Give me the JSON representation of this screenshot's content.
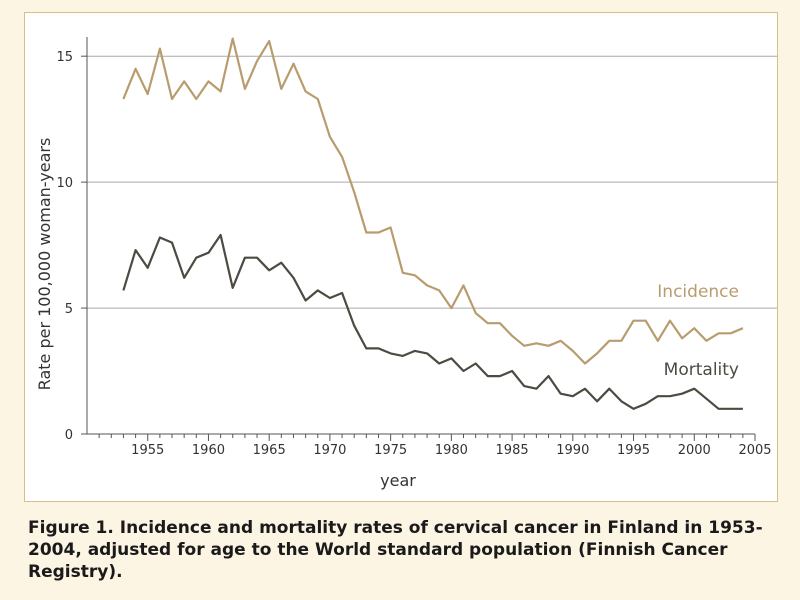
{
  "caption": "Figure 1. Incidence and mortality rates of cervical cancer in Finland in 1953-2004, adjusted for age to the World standard population (Finnish Cancer Registry).",
  "chart_data": {
    "type": "line",
    "title": "",
    "xlabel": "year",
    "ylabel": "Rate per 100,000 woman-years",
    "xlim": [
      1950,
      2005
    ],
    "ylim": [
      0,
      16
    ],
    "x_ticks": [
      "1955",
      "1960",
      "1965",
      "1970",
      "1975",
      "1980",
      "1985",
      "1990",
      "1995",
      "2000",
      "2005"
    ],
    "y_ticks": [
      "0",
      "5",
      "10",
      "15"
    ],
    "grid": "horizontal",
    "x": [
      1953,
      1954,
      1955,
      1956,
      1957,
      1958,
      1959,
      1960,
      1961,
      1962,
      1963,
      1964,
      1965,
      1966,
      1967,
      1968,
      1969,
      1970,
      1971,
      1972,
      1973,
      1974,
      1975,
      1976,
      1977,
      1978,
      1979,
      1980,
      1981,
      1982,
      1983,
      1984,
      1985,
      1986,
      1987,
      1988,
      1989,
      1990,
      1991,
      1992,
      1993,
      1994,
      1995,
      1996,
      1997,
      1998,
      1999,
      2000,
      2001,
      2002,
      2003,
      2004
    ],
    "series": [
      {
        "name": "Incidence",
        "color": "#b89c6e",
        "values": [
          13.3,
          14.5,
          13.5,
          15.3,
          13.3,
          14.0,
          13.3,
          14.0,
          13.6,
          15.7,
          13.7,
          14.8,
          15.6,
          13.7,
          14.7,
          13.6,
          13.3,
          11.8,
          11.0,
          9.6,
          8.0,
          8.0,
          8.2,
          6.4,
          6.3,
          5.9,
          5.7,
          5.0,
          5.9,
          4.8,
          4.4,
          4.4,
          3.9,
          3.5,
          3.6,
          3.5,
          3.7,
          3.3,
          2.8,
          3.2,
          3.7,
          3.7,
          4.5,
          4.5,
          3.7,
          4.5,
          3.8,
          4.2,
          3.7,
          4.0,
          4.0,
          4.2
        ]
      },
      {
        "name": "Mortality",
        "color": "#4d4a42",
        "values": [
          5.7,
          7.3,
          6.6,
          7.8,
          7.6,
          6.2,
          7.0,
          7.2,
          7.9,
          5.8,
          7.0,
          7.0,
          6.5,
          6.8,
          6.2,
          5.3,
          5.7,
          5.4,
          5.6,
          4.3,
          3.4,
          3.4,
          3.2,
          3.1,
          3.3,
          3.2,
          2.8,
          3.0,
          2.5,
          2.8,
          2.3,
          2.3,
          2.5,
          1.9,
          1.8,
          2.3,
          1.6,
          1.5,
          1.8,
          1.3,
          1.8,
          1.3,
          1.0,
          1.2,
          1.5,
          1.5,
          1.6,
          1.8,
          1.4,
          1.0,
          1.0,
          1.0
        ]
      }
    ]
  }
}
